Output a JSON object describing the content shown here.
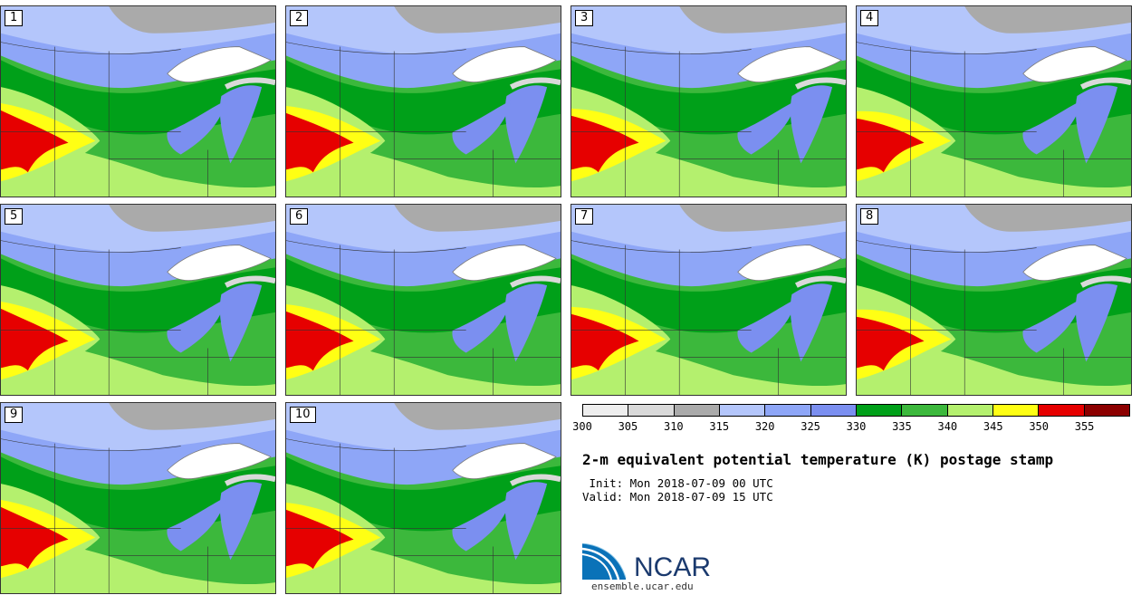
{
  "panels": [
    {
      "label": "1"
    },
    {
      "label": "2"
    },
    {
      "label": "3"
    },
    {
      "label": "4"
    },
    {
      "label": "5"
    },
    {
      "label": "6"
    },
    {
      "label": "7"
    },
    {
      "label": "8"
    },
    {
      "label": "9"
    },
    {
      "label": "10"
    }
  ],
  "colorbar": {
    "ticks": [
      "300",
      "305",
      "310",
      "315",
      "320",
      "325",
      "330",
      "335",
      "340",
      "345",
      "350",
      "355"
    ],
    "colors": [
      "#eeeeee",
      "#d9d9d9",
      "#aaaaaa",
      "#b4c6fb",
      "#8ea6f7",
      "#7b8ff0",
      "#00a019",
      "#3cb83c",
      "#b4f06e",
      "#ffff14",
      "#e60000",
      "#8c0000"
    ]
  },
  "title": "2-m equivalent potential temperature (K) postage stamp",
  "init": " Init: Mon 2018-07-09 00 UTC",
  "valid": "Valid: Mon 2018-07-09 15 UTC",
  "logo": {
    "name": "NCAR",
    "website": "ensemble.ucar.edu"
  }
}
